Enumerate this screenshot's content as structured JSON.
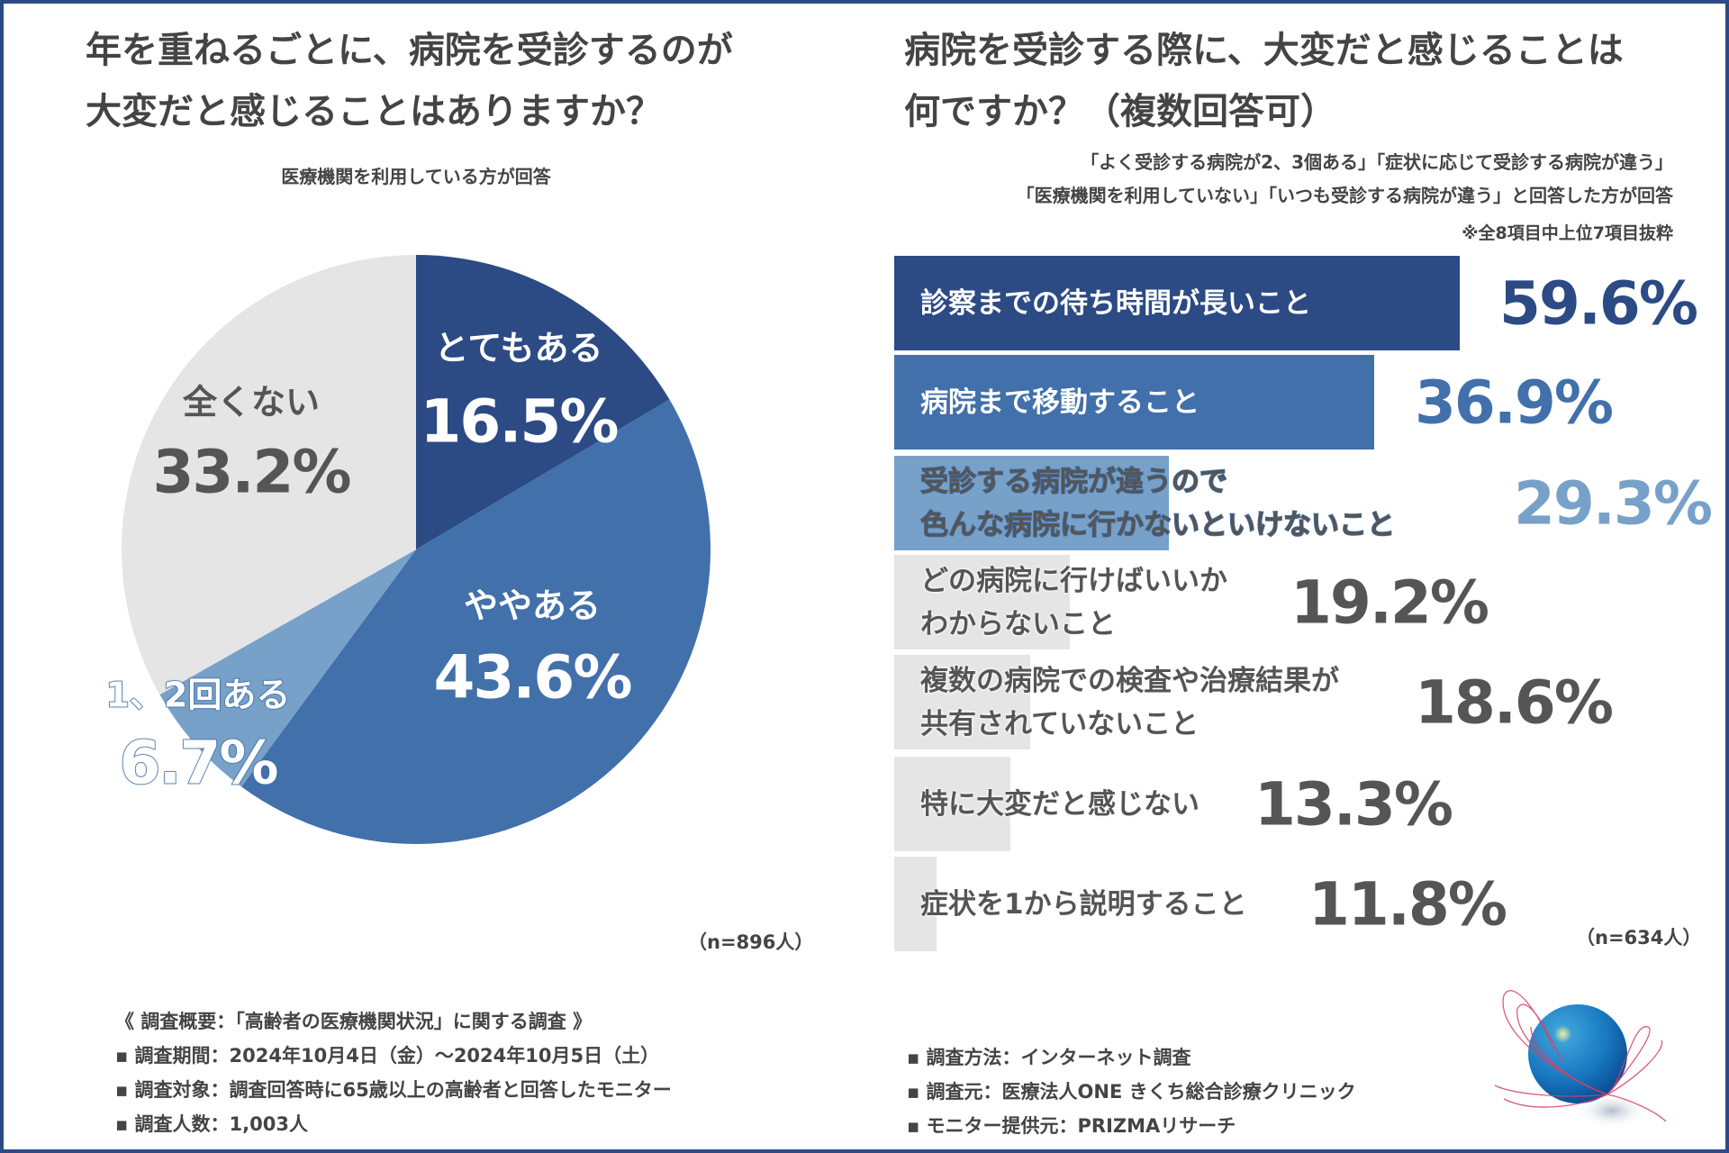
{
  "left": {
    "title_line1": "年を重ねるごとに、病院を受診するのが",
    "title_line2": "大変だと感じることはありますか？",
    "subtitle": "医療機関を利用している方が回答",
    "n_label": "（n=896人）"
  },
  "right": {
    "title_line1": "病院を受診する際に、大変だと感じることは",
    "title_line2": "何ですか？（複数回答可）",
    "note1": "「よく受診する病院が2、3個ある」「症状に応じて受診する病院が違う」",
    "note2": "「医療機関を利用していない」「いつも受診する病院が違う」と回答した方が回答",
    "note3": "※全8項目中上位7項目抜粋",
    "n_label": "（n=634人）"
  },
  "chart_data": [
    {
      "type": "pie",
      "title": "年を重ねるごとに、病院を受診するのが大変だと感じることはありますか？",
      "slices": [
        {
          "label": "とてもある",
          "value": 16.5,
          "display": "16.5%",
          "color": "#2c4a84"
        },
        {
          "label": "ややある",
          "value": 43.6,
          "display": "43.6%",
          "color": "#4170ab"
        },
        {
          "label": "1、2回ある",
          "value": 6.7,
          "display": "6.7%",
          "color": "#77a1c8"
        },
        {
          "label": "全くない",
          "value": 33.2,
          "display": "33.2%",
          "color": "#e5e5e5"
        }
      ]
    },
    {
      "type": "bar",
      "orientation": "horizontal",
      "title": "病院を受診する際に、大変だと感じることは何ですか？（複数回答可）",
      "bars": [
        {
          "label_lines": [
            "診察までの待ち時間が長いこと"
          ],
          "value": 59.6,
          "display": "59.6%",
          "color": "#2c4a84",
          "text": "#2c4a84"
        },
        {
          "label_lines": [
            "病院まで移動すること"
          ],
          "value": 36.9,
          "display": "36.9%",
          "color": "#4170ab",
          "text": "#4170ab"
        },
        {
          "label_lines": [
            "受診する病院が違うので",
            "色んな病院に行かないといけないこと"
          ],
          "value": 29.3,
          "display": "29.3%",
          "color": "#77a1c8",
          "text": "#77a1c8"
        },
        {
          "label_lines": [
            "どの病院に行けばいいか",
            "わからないこと"
          ],
          "value": 19.2,
          "display": "19.2%",
          "color": "#e5e5e5",
          "text": "#555555"
        },
        {
          "label_lines": [
            "複数の病院での検査や治療結果が",
            "共有されていないこと"
          ],
          "value": 18.6,
          "display": "18.6%",
          "color": "#e5e5e5",
          "text": "#555555"
        },
        {
          "label_lines": [
            "特に大変だと感じない"
          ],
          "value": 13.3,
          "display": "13.3%",
          "color": "#e5e5e5",
          "text": "#555555"
        },
        {
          "label_lines": [
            "症状を1から説明すること"
          ],
          "value": 11.8,
          "display": "11.8%",
          "color": "#e5e5e5",
          "text": "#555555"
        }
      ]
    }
  ],
  "footer": {
    "heading": "《 調査概要：「高齢者の医療機関状況」に関する調査 》",
    "left_items": [
      "▪ 調査期間：2024年10月4日（金）～2024年10月5日（土）",
      "▪ 調査対象：調査回答時に65歳以上の高齢者と回答したモニター",
      "▪ 調査人数：1,003人"
    ],
    "right_items": [
      "▪ 調査方法：インターネット調査",
      "▪ 調査元：医療法人ONE きくち総合診療クリニック",
      "▪ モニター提供元：PRIZMAリサーチ"
    ]
  }
}
